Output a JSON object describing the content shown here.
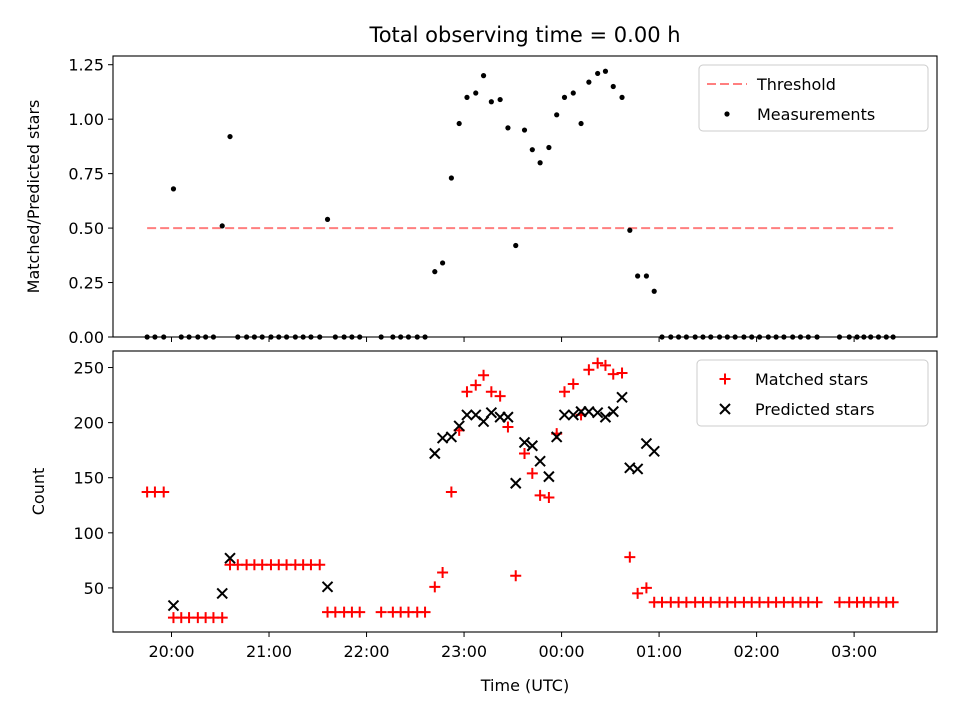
{
  "title": "Total observing time = 0.00 h",
  "chart_data": [
    {
      "type": "scatter",
      "ylabel": "Matched/Predicted stars",
      "ylim": [
        0,
        1.29
      ],
      "yticks": [
        0,
        0.25,
        0.5,
        0.75,
        1.0,
        1.25
      ],
      "ytick_labels": [
        "0.00",
        "0.25",
        "0.50",
        "0.75",
        "1.00",
        "1.25"
      ],
      "xlim": [
        19.4,
        27.85
      ],
      "xticks": [
        20,
        21,
        22,
        23,
        24,
        25,
        26,
        27
      ],
      "legend_position": "top-right",
      "legend": [
        "Threshold",
        "Measurements"
      ],
      "threshold": {
        "name": "Threshold",
        "y": 0.5,
        "x_range": [
          19.75,
          27.4
        ],
        "color": "#ff7f7f"
      },
      "series": [
        {
          "name": "Measurements",
          "color": "#000000",
          "marker": "dot",
          "points": [
            [
              19.75,
              0
            ],
            [
              19.83,
              0
            ],
            [
              19.92,
              0
            ],
            [
              20.02,
              0.68
            ],
            [
              20.1,
              0
            ],
            [
              20.18,
              0
            ],
            [
              20.27,
              0
            ],
            [
              20.35,
              0
            ],
            [
              20.43,
              0
            ],
            [
              20.52,
              0.51
            ],
            [
              20.6,
              0.92
            ],
            [
              20.68,
              0
            ],
            [
              20.77,
              0
            ],
            [
              20.85,
              0
            ],
            [
              20.93,
              0
            ],
            [
              21.02,
              0
            ],
            [
              21.1,
              0
            ],
            [
              21.18,
              0
            ],
            [
              21.27,
              0
            ],
            [
              21.35,
              0
            ],
            [
              21.43,
              0
            ],
            [
              21.52,
              0
            ],
            [
              21.6,
              0.54
            ],
            [
              21.68,
              0
            ],
            [
              21.77,
              0
            ],
            [
              21.85,
              0
            ],
            [
              21.93,
              0
            ],
            [
              22.15,
              0
            ],
            [
              22.27,
              0
            ],
            [
              22.35,
              0
            ],
            [
              22.43,
              0
            ],
            [
              22.52,
              0
            ],
            [
              22.6,
              0
            ],
            [
              22.7,
              0.3
            ],
            [
              22.78,
              0.34
            ],
            [
              22.87,
              0.73
            ],
            [
              22.95,
              0.98
            ],
            [
              23.03,
              1.1
            ],
            [
              23.12,
              1.12
            ],
            [
              23.2,
              1.2
            ],
            [
              23.28,
              1.08
            ],
            [
              23.37,
              1.09
            ],
            [
              23.45,
              0.96
            ],
            [
              23.53,
              0.42
            ],
            [
              23.62,
              0.95
            ],
            [
              23.7,
              0.86
            ],
            [
              23.78,
              0.8
            ],
            [
              23.87,
              0.87
            ],
            [
              23.95,
              1.02
            ],
            [
              24.03,
              1.1
            ],
            [
              24.12,
              1.12
            ],
            [
              24.2,
              0.98
            ],
            [
              24.28,
              1.17
            ],
            [
              24.37,
              1.21
            ],
            [
              24.45,
              1.22
            ],
            [
              24.53,
              1.15
            ],
            [
              24.62,
              1.1
            ],
            [
              24.7,
              0.49
            ],
            [
              24.78,
              0.28
            ],
            [
              24.87,
              0.28
            ],
            [
              24.95,
              0.21
            ],
            [
              25.03,
              0
            ],
            [
              25.12,
              0
            ],
            [
              25.2,
              0
            ],
            [
              25.28,
              0
            ],
            [
              25.37,
              0
            ],
            [
              25.45,
              0
            ],
            [
              25.53,
              0
            ],
            [
              25.62,
              0
            ],
            [
              25.7,
              0
            ],
            [
              25.78,
              0
            ],
            [
              25.87,
              0
            ],
            [
              25.95,
              0
            ],
            [
              26.03,
              0
            ],
            [
              26.12,
              0
            ],
            [
              26.2,
              0
            ],
            [
              26.28,
              0
            ],
            [
              26.37,
              0
            ],
            [
              26.45,
              0
            ],
            [
              26.53,
              0
            ],
            [
              26.62,
              0
            ],
            [
              26.85,
              0
            ],
            [
              26.95,
              0
            ],
            [
              27.03,
              0
            ],
            [
              27.1,
              0
            ],
            [
              27.17,
              0
            ],
            [
              27.25,
              0
            ],
            [
              27.33,
              0
            ],
            [
              27.4,
              0
            ]
          ]
        }
      ]
    },
    {
      "type": "scatter",
      "ylabel": "Count",
      "xlabel": "Time (UTC)",
      "ylim": [
        10,
        265
      ],
      "yticks": [
        50,
        100,
        150,
        200,
        250
      ],
      "ytick_labels": [
        "50",
        "100",
        "150",
        "200",
        "250"
      ],
      "xlim": [
        19.4,
        27.85
      ],
      "xticks": [
        20,
        21,
        22,
        23,
        24,
        25,
        26,
        27
      ],
      "xtick_labels": [
        "20:00",
        "21:00",
        "22:00",
        "23:00",
        "00:00",
        "01:00",
        "02:00",
        "03:00"
      ],
      "legend_position": "top-right",
      "legend": [
        "Matched stars",
        "Predicted stars"
      ],
      "series": [
        {
          "name": "Matched stars",
          "color": "#ff0000",
          "marker": "plus",
          "points": [
            [
              19.75,
              137
            ],
            [
              19.83,
              137
            ],
            [
              19.92,
              137
            ],
            [
              20.02,
              23
            ],
            [
              20.1,
              23
            ],
            [
              20.18,
              23
            ],
            [
              20.27,
              23
            ],
            [
              20.35,
              23
            ],
            [
              20.43,
              23
            ],
            [
              20.52,
              23
            ],
            [
              20.6,
              71
            ],
            [
              20.68,
              71
            ],
            [
              20.77,
              71
            ],
            [
              20.85,
              71
            ],
            [
              20.93,
              71
            ],
            [
              21.02,
              71
            ],
            [
              21.1,
              71
            ],
            [
              21.18,
              71
            ],
            [
              21.27,
              71
            ],
            [
              21.35,
              71
            ],
            [
              21.43,
              71
            ],
            [
              21.52,
              71
            ],
            [
              21.6,
              28
            ],
            [
              21.68,
              28
            ],
            [
              21.77,
              28
            ],
            [
              21.85,
              28
            ],
            [
              21.93,
              28
            ],
            [
              22.15,
              28
            ],
            [
              22.27,
              28
            ],
            [
              22.35,
              28
            ],
            [
              22.43,
              28
            ],
            [
              22.52,
              28
            ],
            [
              22.6,
              28
            ],
            [
              22.7,
              51
            ],
            [
              22.78,
              64
            ],
            [
              22.87,
              137
            ],
            [
              22.95,
              193
            ],
            [
              23.03,
              228
            ],
            [
              23.12,
              234
            ],
            [
              23.2,
              243
            ],
            [
              23.28,
              228
            ],
            [
              23.37,
              224
            ],
            [
              23.45,
              196
            ],
            [
              23.53,
              61
            ],
            [
              23.62,
              172
            ],
            [
              23.7,
              154
            ],
            [
              23.78,
              134
            ],
            [
              23.87,
              132
            ],
            [
              23.95,
              190
            ],
            [
              24.03,
              228
            ],
            [
              24.12,
              235
            ],
            [
              24.2,
              207
            ],
            [
              24.28,
              248
            ],
            [
              24.37,
              254
            ],
            [
              24.45,
              252
            ],
            [
              24.53,
              244
            ],
            [
              24.62,
              245
            ],
            [
              24.7,
              78
            ],
            [
              24.78,
              45
            ],
            [
              24.87,
              50
            ],
            [
              24.95,
              37
            ],
            [
              25.03,
              37
            ],
            [
              25.12,
              37
            ],
            [
              25.2,
              37
            ],
            [
              25.28,
              37
            ],
            [
              25.37,
              37
            ],
            [
              25.45,
              37
            ],
            [
              25.53,
              37
            ],
            [
              25.62,
              37
            ],
            [
              25.7,
              37
            ],
            [
              25.78,
              37
            ],
            [
              25.87,
              37
            ],
            [
              25.95,
              37
            ],
            [
              26.03,
              37
            ],
            [
              26.12,
              37
            ],
            [
              26.2,
              37
            ],
            [
              26.28,
              37
            ],
            [
              26.37,
              37
            ],
            [
              26.45,
              37
            ],
            [
              26.53,
              37
            ],
            [
              26.62,
              37
            ],
            [
              26.85,
              37
            ],
            [
              26.95,
              37
            ],
            [
              27.03,
              37
            ],
            [
              27.1,
              37
            ],
            [
              27.17,
              37
            ],
            [
              27.25,
              37
            ],
            [
              27.33,
              37
            ],
            [
              27.4,
              37
            ]
          ]
        },
        {
          "name": "Predicted stars",
          "color": "#000000",
          "marker": "x",
          "points": [
            [
              20.02,
              34
            ],
            [
              20.52,
              45
            ],
            [
              20.6,
              77
            ],
            [
              21.6,
              51
            ],
            [
              22.7,
              172
            ],
            [
              22.78,
              186
            ],
            [
              22.87,
              187
            ],
            [
              22.95,
              197
            ],
            [
              23.03,
              207
            ],
            [
              23.12,
              207
            ],
            [
              23.2,
              201
            ],
            [
              23.28,
              209
            ],
            [
              23.37,
              205
            ],
            [
              23.45,
              205
            ],
            [
              23.53,
              145
            ],
            [
              23.62,
              182
            ],
            [
              23.7,
              179
            ],
            [
              23.78,
              165
            ],
            [
              23.87,
              151
            ],
            [
              23.95,
              187
            ],
            [
              24.03,
              207
            ],
            [
              24.12,
              207
            ],
            [
              24.2,
              210
            ],
            [
              24.28,
              210
            ],
            [
              24.37,
              209
            ],
            [
              24.45,
              205
            ],
            [
              24.53,
              210
            ],
            [
              24.62,
              223
            ],
            [
              24.7,
              159
            ],
            [
              24.78,
              158
            ],
            [
              24.87,
              181
            ],
            [
              24.95,
              174
            ]
          ]
        }
      ]
    }
  ]
}
